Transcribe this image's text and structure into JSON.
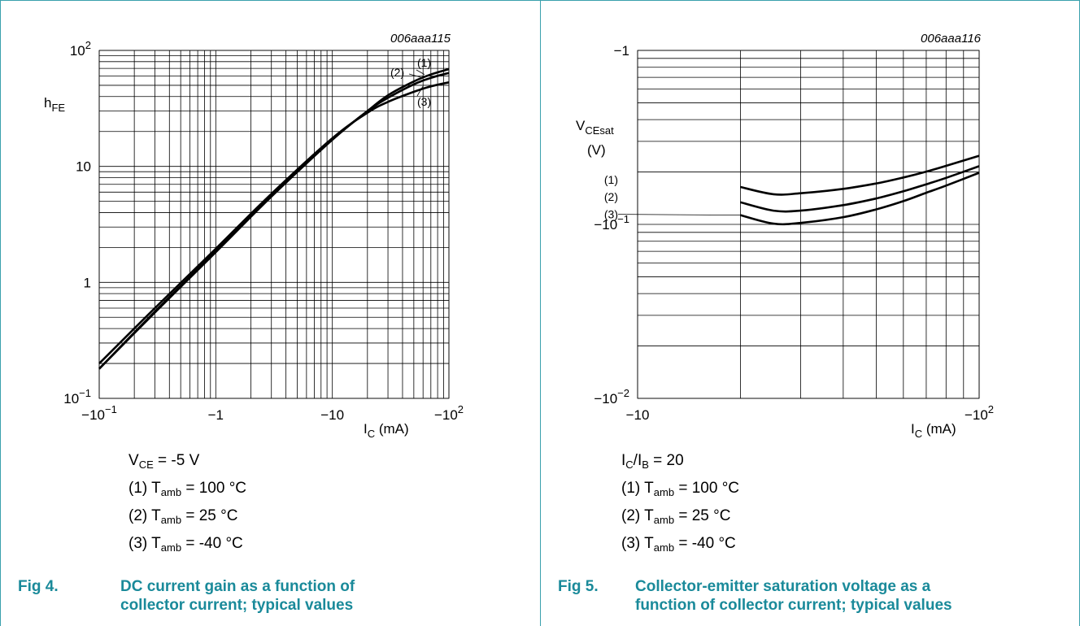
{
  "colors": {
    "frame": "#3aa0ad",
    "caption": "#1a8a9a",
    "ink": "#000000"
  },
  "fig4": {
    "caption_number": "Fig 4.",
    "caption_text": "DC current gain as a function of collector current; typical values",
    "conditions": {
      "vce": {
        "sym": "V",
        "sub": "CE",
        "rest": " = -5 V"
      },
      "lines": [
        {
          "pre": "(1) T",
          "sub": "amb",
          "rest": " = 100 °C"
        },
        {
          "pre": "(2) T",
          "sub": "amb",
          "rest": " = 25 °C"
        },
        {
          "pre": "(3) T",
          "sub": "amb",
          "rest": " = -40 °C"
        }
      ]
    }
  },
  "fig5": {
    "caption_number": "Fig 5.",
    "caption_text": "Collector-emitter saturation voltage as a function of collector current; typical values",
    "conditions": {
      "ratio": {
        "a": "I",
        "asub": "C",
        "slash": "/I",
        "bsub": "B",
        "rest": " = 20"
      },
      "lines": [
        {
          "pre": "(1) T",
          "sub": "amb",
          "rest": " = 100 °C"
        },
        {
          "pre": "(2) T",
          "sub": "amb",
          "rest": " = 25 °C"
        },
        {
          "pre": "(3) T",
          "sub": "amb",
          "rest": " = -40 °C"
        }
      ]
    }
  },
  "chart_data": [
    {
      "type": "line",
      "code": "006aaa115",
      "xscale": "log",
      "yscale": "log",
      "xlim": [
        -0.1,
        -100
      ],
      "ylim": [
        0.1,
        100
      ],
      "xlabel": {
        "sym": "I",
        "sub": "C",
        "unit": " (mA)"
      },
      "ylabel": {
        "sym": "h",
        "sub": "FE",
        "unit": ""
      },
      "xticks": [
        {
          "value": -0.1,
          "base": "−10",
          "exp": "−1"
        },
        {
          "value": -1,
          "base": "−1",
          "exp": ""
        },
        {
          "value": -10,
          "base": "−10",
          "exp": ""
        },
        {
          "value": -100,
          "base": "−10",
          "exp": "2"
        }
      ],
      "yticks": [
        {
          "value": 0.1,
          "base": "10",
          "exp": "−1"
        },
        {
          "value": 1,
          "base": "1",
          "exp": ""
        },
        {
          "value": 10,
          "base": "10",
          "exp": ""
        },
        {
          "value": 100,
          "base": "10",
          "exp": "2"
        }
      ],
      "grid": true,
      "series": [
        {
          "name": "(1)",
          "x": [
            -0.1,
            -0.3,
            -1,
            -3,
            -10,
            -20,
            -30,
            -50,
            -70,
            -100
          ],
          "y": [
            0.18,
            0.56,
            1.85,
            5.5,
            17,
            30,
            41,
            54,
            62,
            69
          ]
        },
        {
          "name": "(2)",
          "x": [
            -0.1,
            -0.3,
            -1,
            -3,
            -10,
            -20,
            -30,
            -50,
            -70,
            -100
          ],
          "y": [
            0.18,
            0.55,
            1.82,
            5.5,
            17,
            30,
            39,
            51,
            58,
            64
          ]
        },
        {
          "name": "(3)",
          "x": [
            -0.1,
            -0.3,
            -1,
            -3,
            -10,
            -20,
            -30,
            -50,
            -70,
            -100
          ],
          "y": [
            0.2,
            0.6,
            1.95,
            5.8,
            17.5,
            29,
            36,
            44,
            49,
            53
          ]
        }
      ]
    },
    {
      "type": "line",
      "code": "006aaa116",
      "xscale": "log",
      "yscale": "log",
      "xlim": [
        -10,
        -100
      ],
      "ylim": [
        -0.01,
        -1
      ],
      "xlabel": {
        "sym": "I",
        "sub": "C",
        "unit": " (mA)"
      },
      "ylabel": {
        "sym": "V",
        "sub": "CEsat",
        "unit": "(V)"
      },
      "xticks": [
        {
          "value": -10,
          "base": "−10",
          "exp": ""
        },
        {
          "value": -100,
          "base": "−10",
          "exp": "2"
        }
      ],
      "yticks": [
        {
          "value": -0.01,
          "base": "−10",
          "exp": "−2"
        },
        {
          "value": -0.1,
          "base": "−10",
          "exp": "−1"
        },
        {
          "value": -1,
          "base": "−1",
          "exp": ""
        }
      ],
      "grid": true,
      "series": [
        {
          "name": "(1)",
          "x": [
            -20,
            -25,
            -30,
            -40,
            -50,
            -60,
            -70,
            -80,
            -100
          ],
          "y": [
            -0.164,
            -0.149,
            -0.151,
            -0.16,
            -0.172,
            -0.186,
            -0.201,
            -0.217,
            -0.248
          ]
        },
        {
          "name": "(2)",
          "x": [
            -20,
            -25,
            -30,
            -40,
            -50,
            -60,
            -70,
            -80,
            -100
          ],
          "y": [
            -0.134,
            -0.12,
            -0.12,
            -0.129,
            -0.141,
            -0.155,
            -0.17,
            -0.185,
            -0.216
          ]
        },
        {
          "name": "(3)",
          "x": [
            -20,
            -25,
            -30,
            -40,
            -50,
            -60,
            -70,
            -80,
            -100
          ],
          "y": [
            -0.113,
            -0.101,
            -0.102,
            -0.11,
            -0.122,
            -0.136,
            -0.152,
            -0.167,
            -0.198
          ]
        }
      ]
    }
  ]
}
